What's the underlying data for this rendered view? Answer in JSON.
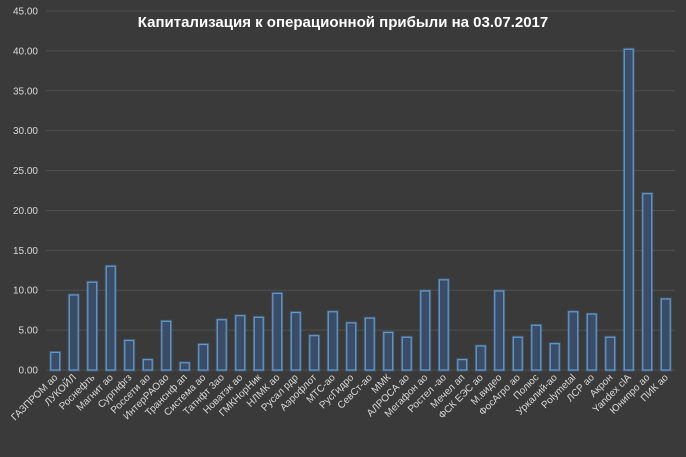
{
  "chart_data": {
    "type": "bar",
    "title": "Капитализация к операционной прибыли на 03.07.2017",
    "xlabel": "",
    "ylabel": "",
    "ylim": [
      0,
      45
    ],
    "yticks": [
      "0.00",
      "5.00",
      "10.00",
      "15.00",
      "20.00",
      "25.00",
      "30.00",
      "35.00",
      "40.00",
      "45.00"
    ],
    "grid": true,
    "legend": "none",
    "colors": {
      "background": "#3a3a3a",
      "bar_fill": "#3b4d66",
      "bar_edge": "#5b9bd5",
      "grid": "#4f4f4f",
      "text": "#d9d9d9"
    },
    "categories": [
      "ГАЗПРОМ ао",
      "ЛУКОЙЛ",
      "Роснефть",
      "Магнит ао",
      "Сургнфгз",
      "Россети ао",
      "ИнтерРАОао",
      "Транснф ап",
      "Система ао",
      "Татнфт 3ао",
      "Новатэк ао",
      "ГМКНорНик",
      "НЛМК ао",
      "Русал рдр",
      "Аэрофлот",
      "МТС-ао",
      "РусГидро",
      "СевСт-ао",
      "ММК",
      "АЛРОСА ао",
      "Мегафон ао",
      "Ростел -ао",
      "Мечел ап",
      "ФСК ЕЭС ао",
      "М.видео",
      "ФосАгро ао",
      "Полюс",
      "Уркалий-ао",
      "Polymetal",
      "ЛСР ао",
      "Акрон",
      "Yandex clA",
      "Юнипро ао",
      "ПИК ао"
    ],
    "values": [
      2.2,
      9.4,
      11.0,
      13.0,
      3.7,
      1.3,
      6.1,
      0.9,
      3.2,
      6.3,
      6.8,
      6.6,
      9.6,
      7.2,
      4.3,
      7.3,
      5.9,
      6.5,
      4.7,
      4.1,
      9.9,
      11.3,
      1.3,
      3.0,
      9.9,
      4.1,
      5.6,
      3.3,
      7.3,
      7.0,
      4.1,
      40.2,
      22.1,
      8.9
    ]
  }
}
